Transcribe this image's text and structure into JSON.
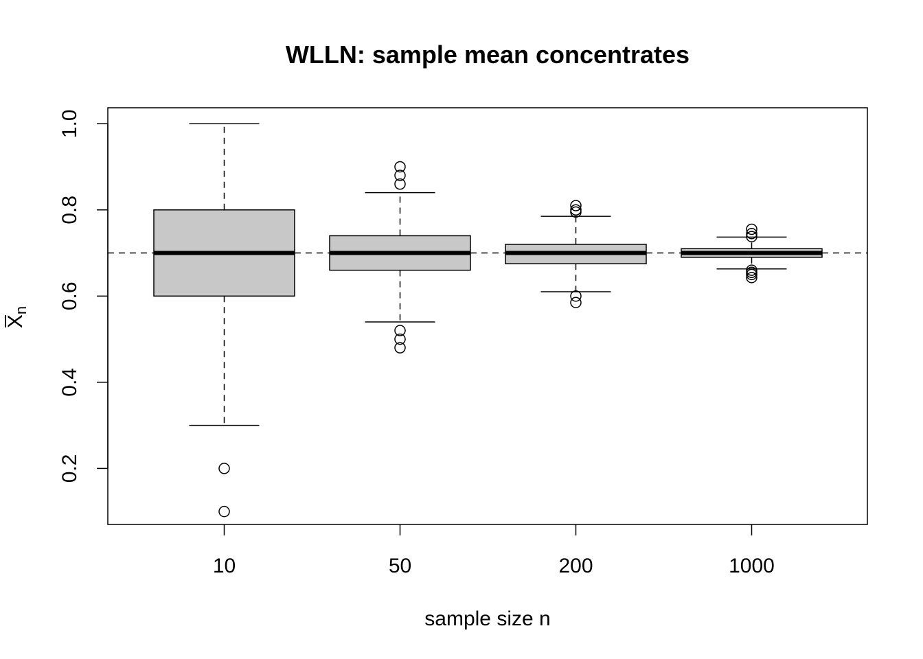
{
  "chart_data": {
    "type": "boxplot",
    "title": "WLLN: sample mean concentrates",
    "xlabel": "sample size n",
    "ylabel": {
      "symbol": "X",
      "subscript": "n"
    },
    "categories": [
      "10",
      "50",
      "200",
      "1000"
    ],
    "ylim": [
      0.07,
      1.037
    ],
    "yticks": [
      0.2,
      0.4,
      0.6,
      0.8,
      1.0
    ],
    "ytick_labels": [
      "0.2",
      "0.4",
      "0.6",
      "0.8",
      "1.0"
    ],
    "reference_line": {
      "y": 0.7,
      "style": "dashed"
    },
    "box_fill": "#c8c8c8",
    "grid": false,
    "boxes": [
      {
        "category": "10",
        "whisker_low": 0.3,
        "q1": 0.6,
        "median": 0.7,
        "q3": 0.8,
        "whisker_high": 1.0,
        "outliers": [
          0.2,
          0.1
        ]
      },
      {
        "category": "50",
        "whisker_low": 0.54,
        "q1": 0.66,
        "median": 0.7,
        "q3": 0.74,
        "whisker_high": 0.84,
        "outliers": [
          0.9,
          0.88,
          0.86,
          0.52,
          0.5,
          0.48
        ]
      },
      {
        "category": "200",
        "whisker_low": 0.61,
        "q1": 0.675,
        "median": 0.7,
        "q3": 0.72,
        "whisker_high": 0.785,
        "outliers": [
          0.81,
          0.8,
          0.795,
          0.6,
          0.585
        ]
      },
      {
        "category": "1000",
        "whisker_low": 0.663,
        "q1": 0.69,
        "median": 0.7,
        "q3": 0.71,
        "whisker_high": 0.737,
        "outliers": [
          0.755,
          0.745,
          0.738,
          0.66,
          0.655,
          0.65,
          0.643
        ]
      }
    ]
  }
}
